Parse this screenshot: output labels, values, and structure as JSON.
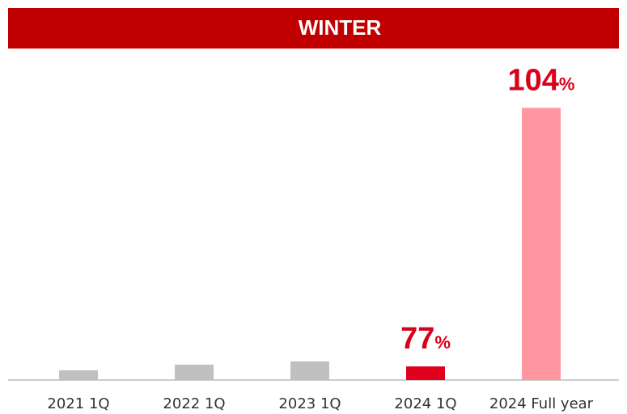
{
  "chart_data": {
    "type": "bar",
    "title": "WINTER",
    "title_color": "#c00000",
    "categories": [
      "2021 1Q",
      "2022 1Q",
      "2023 1Q",
      "2024 1Q",
      "2024 Full year"
    ],
    "values": [
      3.7,
      5.9,
      7.1,
      5.2,
      104
    ],
    "colors": [
      "#c0c0c0",
      "#c0c0c0",
      "#c0c0c0",
      "#e0001b",
      "#ff96a0"
    ],
    "ylim": [
      0,
      110
    ],
    "annotations": [
      {
        "category": "2024 1Q",
        "text": "77",
        "unit": "%"
      },
      {
        "category": "2024 Full year",
        "text": "104",
        "unit": "%"
      }
    ]
  }
}
